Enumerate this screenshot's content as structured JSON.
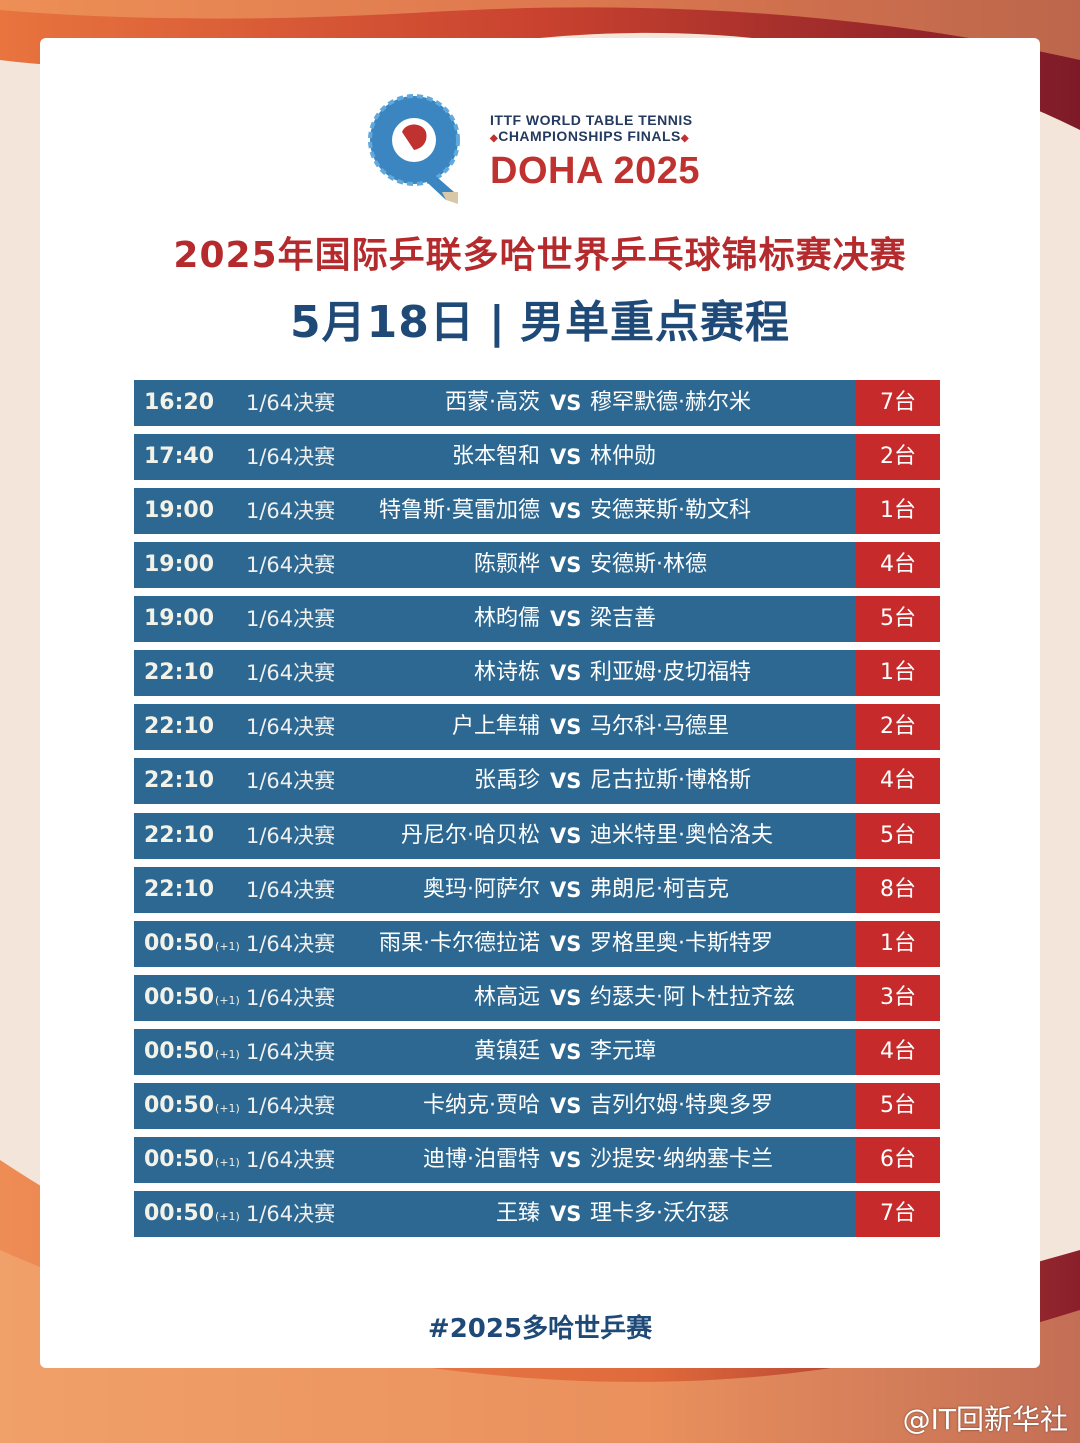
{
  "colors": {
    "row_bg": "#2c6891",
    "table_bg": "#c62a2a",
    "title_red": "#b52a2c",
    "title_blue": "#1f4a78",
    "frame_red": "#8c1f2b",
    "frame_orange": "#e26b3a"
  },
  "logo": {
    "icon": "ittf-q-logo-icon",
    "line1": "ITTF WORLD TABLE TENNIS",
    "line2": "CHAMPIONSHIPS FINALS",
    "line2_mark": "◆",
    "line3": "DOHA 2025"
  },
  "title": "2025年国际乒联多哈世界乒乓球锦标赛决赛",
  "subtitle": {
    "date": "5月18日",
    "sep": "|",
    "text": "男单重点赛程"
  },
  "vs_label": "VS",
  "matches": [
    {
      "time": "16:20",
      "plus": "",
      "round": "1/64决赛",
      "p1": "西蒙·高茨",
      "p2": "穆罕默德·赫尔米",
      "table": "7台"
    },
    {
      "time": "17:40",
      "plus": "",
      "round": "1/64决赛",
      "p1": "张本智和",
      "p2": "林仲勋",
      "table": "2台"
    },
    {
      "time": "19:00",
      "plus": "",
      "round": "1/64决赛",
      "p1": "特鲁斯·莫雷加德",
      "p2": "安德莱斯·勒文科",
      "table": "1台"
    },
    {
      "time": "19:00",
      "plus": "",
      "round": "1/64决赛",
      "p1": "陈颢桦",
      "p2": "安德斯·林德",
      "table": "4台"
    },
    {
      "time": "19:00",
      "plus": "",
      "round": "1/64决赛",
      "p1": "林昀儒",
      "p2": "梁吉善",
      "table": "5台"
    },
    {
      "time": "22:10",
      "plus": "",
      "round": "1/64决赛",
      "p1": "林诗栋",
      "p2": "利亚姆·皮切福特",
      "table": "1台"
    },
    {
      "time": "22:10",
      "plus": "",
      "round": "1/64决赛",
      "p1": "户上隼辅",
      "p2": "马尔科·马德里",
      "table": "2台"
    },
    {
      "time": "22:10",
      "plus": "",
      "round": "1/64决赛",
      "p1": "张禹珍",
      "p2": "尼古拉斯·博格斯",
      "table": "4台"
    },
    {
      "time": "22:10",
      "plus": "",
      "round": "1/64决赛",
      "p1": "丹尼尔·哈贝松",
      "p2": "迪米特里·奥恰洛夫",
      "table": "5台"
    },
    {
      "time": "22:10",
      "plus": "",
      "round": "1/64决赛",
      "p1": "奥玛·阿萨尔",
      "p2": "弗朗尼·柯吉克",
      "table": "8台"
    },
    {
      "time": "00:50",
      "plus": "(+1)",
      "round": "1/64决赛",
      "p1": "雨果·卡尔德拉诺",
      "p2": "罗格里奥·卡斯特罗",
      "table": "1台"
    },
    {
      "time": "00:50",
      "plus": "(+1)",
      "round": "1/64决赛",
      "p1": "林高远",
      "p2": "约瑟夫·阿卜杜拉齐兹",
      "table": "3台"
    },
    {
      "time": "00:50",
      "plus": "(+1)",
      "round": "1/64决赛",
      "p1": "黄镇廷",
      "p2": "李元璋",
      "table": "4台"
    },
    {
      "time": "00:50",
      "plus": "(+1)",
      "round": "1/64决赛",
      "p1": "卡纳克·贾哈",
      "p2": "吉列尔姆·特奥多罗",
      "table": "5台"
    },
    {
      "time": "00:50",
      "plus": "(+1)",
      "round": "1/64决赛",
      "p1": "迪博·泊雷特",
      "p2": "沙提安·纳纳塞卡兰",
      "table": "6台"
    },
    {
      "time": "00:50",
      "plus": "(+1)",
      "round": "1/64决赛",
      "p1": "王臻",
      "p2": "理卡多·沃尔瑟",
      "table": "7台"
    }
  ],
  "hashtag": "#2025多哈世乒赛",
  "watermark": "@IT回新华社"
}
